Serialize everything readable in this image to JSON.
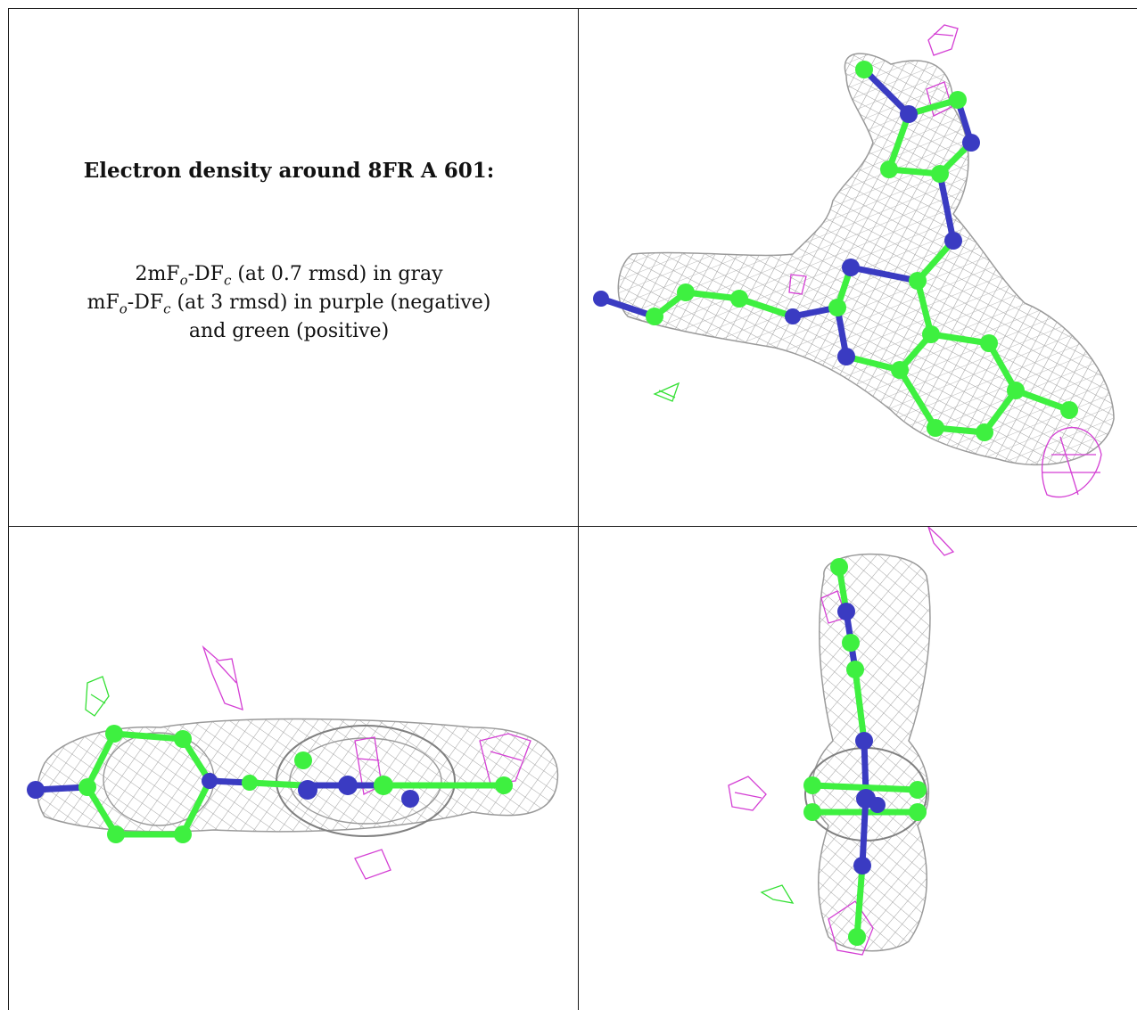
{
  "caption": {
    "title": "Electron density around 8FR A 601:",
    "line1": {
      "a": "2mF",
      "o": "o",
      "b": "-DF",
      "c": "c",
      "rest": " (at 0.7 rmsd) in gray"
    },
    "line2": {
      "a": "mF",
      "o": "o",
      "b": "-DF",
      "c": "c",
      "rest": " (at 3 rmsd) in purple (negative)"
    },
    "line3": "and green (positive)"
  },
  "colors": {
    "carbon": "#3ef040",
    "nitrogen": "#3a3bc2",
    "mesh_2fofc": "#9a9a9a",
    "mesh_negative": "#d43fd4",
    "mesh_positive": "#35e035",
    "border": "#1a1a1a"
  },
  "panels": [
    {
      "id": "top-right",
      "view": "face-on ligand view with density mesh"
    },
    {
      "id": "bottom-left",
      "view": "edge-on side view with density mesh"
    },
    {
      "id": "bottom-right",
      "view": "end-on vertical view with density mesh"
    }
  ]
}
